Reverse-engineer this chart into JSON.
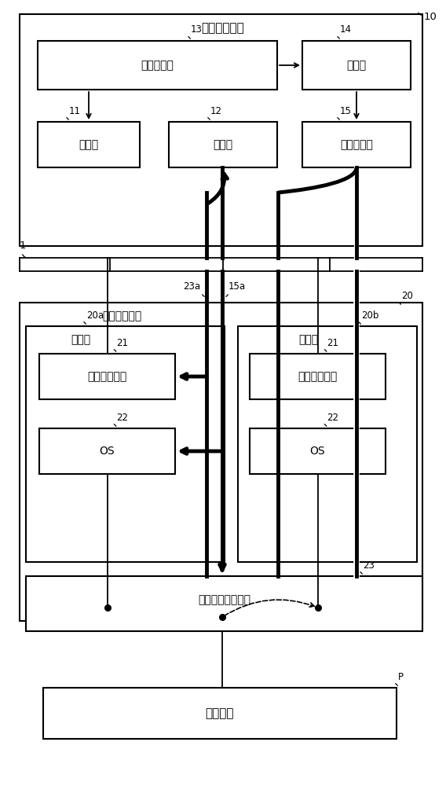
{
  "title_top": "安全管理装置",
  "label_10": "10",
  "label_1": "1",
  "label_20": "20",
  "label_20a": "20a",
  "label_20b": "20b",
  "label_P": "P",
  "box_13_label": "安全处理部",
  "box_11_label": "查询部",
  "box_12_label": "判定部",
  "box_14_label": "确认部",
  "box_15_label": "切换指示部",
  "label_13": "13",
  "label_14": "14",
  "label_11": "11",
  "label_12": "12",
  "label_15": "15",
  "label_23a": "23a",
  "label_15a": "15a",
  "factory_ctrl_label": "工厂控制装置",
  "ctrl_left_label": "控制部",
  "ctrl_right_label": "控制部",
  "box_21_left": "工厂控制软件",
  "box_22_left": "OS",
  "box_21_right": "工厂控制软件",
  "box_22_right": "OS",
  "label_21": "21",
  "label_22": "22",
  "label_23": "23",
  "switch_label": "常用待机切换装置",
  "factory_process_label": "工厂工艺",
  "font_size_label": 8.5,
  "font_size_box": 10,
  "font_size_title": 11,
  "font_size_small": 8
}
